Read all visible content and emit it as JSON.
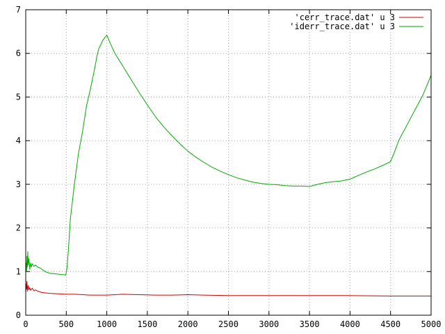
{
  "chart_data": {
    "type": "line",
    "title": "",
    "xlabel": "",
    "ylabel": "",
    "xlim": [
      0,
      5000
    ],
    "ylim": [
      0,
      7
    ],
    "xticks": [
      0,
      500,
      1000,
      1500,
      2000,
      2500,
      3000,
      3500,
      4000,
      4500,
      5000
    ],
    "yticks": [
      0,
      1,
      2,
      3,
      4,
      5,
      6,
      7
    ],
    "grid": true,
    "legend_position": "top-right",
    "series": [
      {
        "name": "'cerr_trace.dat' u 3",
        "color": "#cc0000",
        "points": [
          [
            0,
            0.5
          ],
          [
            5,
            0.72
          ],
          [
            10,
            0.6
          ],
          [
            15,
            0.78
          ],
          [
            20,
            0.55
          ],
          [
            30,
            0.68
          ],
          [
            40,
            0.58
          ],
          [
            50,
            0.63
          ],
          [
            60,
            0.57
          ],
          [
            80,
            0.62
          ],
          [
            100,
            0.56
          ],
          [
            120,
            0.58
          ],
          [
            150,
            0.55
          ],
          [
            200,
            0.52
          ],
          [
            250,
            0.51
          ],
          [
            300,
            0.5
          ],
          [
            400,
            0.49
          ],
          [
            500,
            0.48
          ],
          [
            600,
            0.48
          ],
          [
            700,
            0.47
          ],
          [
            800,
            0.46
          ],
          [
            900,
            0.46
          ],
          [
            1000,
            0.46
          ],
          [
            1100,
            0.47
          ],
          [
            1200,
            0.48
          ],
          [
            1400,
            0.47
          ],
          [
            1600,
            0.46
          ],
          [
            1800,
            0.46
          ],
          [
            2000,
            0.47
          ],
          [
            2200,
            0.46
          ],
          [
            2500,
            0.45
          ],
          [
            3000,
            0.45
          ],
          [
            3500,
            0.45
          ],
          [
            4000,
            0.45
          ],
          [
            4500,
            0.44
          ],
          [
            5000,
            0.44
          ]
        ]
      },
      {
        "name": "'iderr_trace.dat' u 3",
        "color": "#00aa00",
        "points": [
          [
            0,
            1.0
          ],
          [
            5,
            1.2
          ],
          [
            10,
            1.0
          ],
          [
            15,
            1.35
          ],
          [
            20,
            1.1
          ],
          [
            25,
            1.46
          ],
          [
            30,
            1.15
          ],
          [
            40,
            1.3
          ],
          [
            50,
            1.05
          ],
          [
            60,
            1.2
          ],
          [
            70,
            1.1
          ],
          [
            80,
            1.18
          ],
          [
            100,
            1.12
          ],
          [
            120,
            1.15
          ],
          [
            150,
            1.1
          ],
          [
            180,
            1.08
          ],
          [
            200,
            1.05
          ],
          [
            250,
            0.99
          ],
          [
            300,
            0.96
          ],
          [
            350,
            0.95
          ],
          [
            400,
            0.94
          ],
          [
            450,
            0.93
          ],
          [
            495,
            0.92
          ],
          [
            510,
            1.1
          ],
          [
            530,
            1.6
          ],
          [
            550,
            2.2
          ],
          [
            600,
            3.0
          ],
          [
            650,
            3.7
          ],
          [
            700,
            4.2
          ],
          [
            750,
            4.8
          ],
          [
            800,
            5.2
          ],
          [
            850,
            5.65
          ],
          [
            880,
            5.95
          ],
          [
            900,
            6.1
          ],
          [
            950,
            6.3
          ],
          [
            1000,
            6.42
          ],
          [
            1050,
            6.2
          ],
          [
            1100,
            6.0
          ],
          [
            1200,
            5.7
          ],
          [
            1300,
            5.4
          ],
          [
            1400,
            5.1
          ],
          [
            1500,
            4.82
          ],
          [
            1600,
            4.55
          ],
          [
            1700,
            4.32
          ],
          [
            1800,
            4.12
          ],
          [
            1900,
            3.93
          ],
          [
            2000,
            3.76
          ],
          [
            2100,
            3.62
          ],
          [
            2200,
            3.5
          ],
          [
            2300,
            3.39
          ],
          [
            2400,
            3.3
          ],
          [
            2500,
            3.22
          ],
          [
            2600,
            3.15
          ],
          [
            2700,
            3.1
          ],
          [
            2800,
            3.05
          ],
          [
            2900,
            3.02
          ],
          [
            3000,
            3.0
          ],
          [
            3100,
            2.99
          ],
          [
            3200,
            2.97
          ],
          [
            3300,
            2.96
          ],
          [
            3400,
            2.96
          ],
          [
            3500,
            2.95
          ],
          [
            3600,
            3.0
          ],
          [
            3700,
            3.04
          ],
          [
            3800,
            3.06
          ],
          [
            3900,
            3.08
          ],
          [
            4000,
            3.12
          ],
          [
            4100,
            3.2
          ],
          [
            4200,
            3.28
          ],
          [
            4300,
            3.35
          ],
          [
            4400,
            3.43
          ],
          [
            4500,
            3.52
          ],
          [
            4550,
            3.75
          ],
          [
            4600,
            4.0
          ],
          [
            4700,
            4.35
          ],
          [
            4800,
            4.7
          ],
          [
            4900,
            5.05
          ],
          [
            5000,
            5.5
          ]
        ]
      }
    ]
  }
}
